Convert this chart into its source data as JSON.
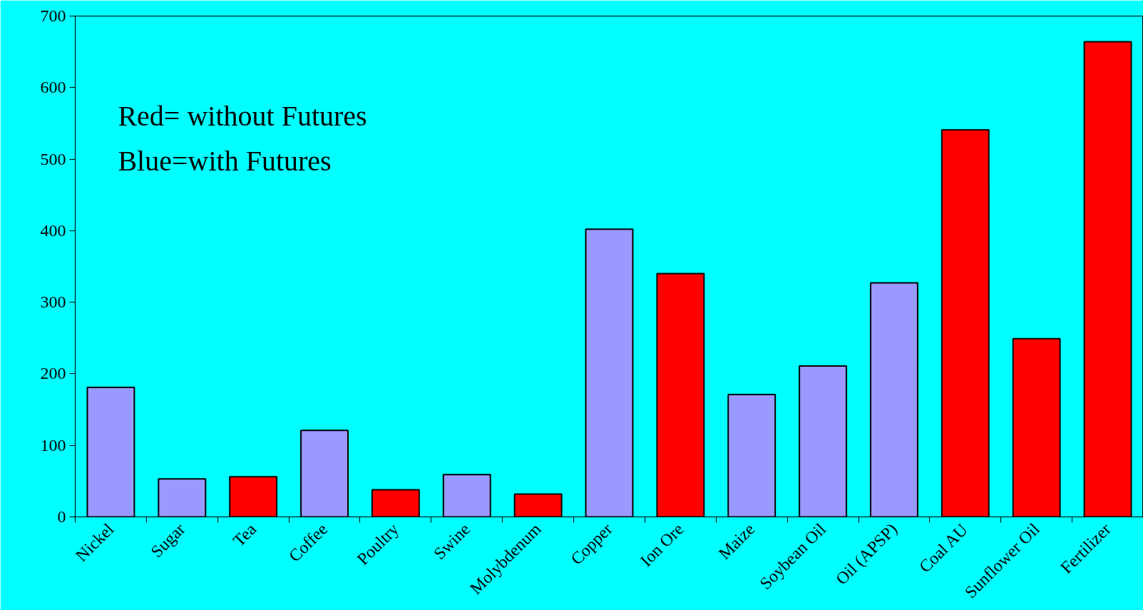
{
  "chart_data": {
    "type": "bar",
    "categories": [
      "Nickel",
      "Sugar",
      "Tea",
      "Coffee",
      "Poultry",
      "Swine",
      "Molybdenum",
      "Copper",
      "Ion Ore",
      "Maize",
      "Soybean Oil",
      "Oil (APSP)",
      "Coal AU",
      "Sunflower Oil",
      "Fertilizer"
    ],
    "values": [
      181,
      53,
      56,
      121,
      38,
      59,
      32,
      402,
      340,
      171,
      211,
      327,
      541,
      249,
      664
    ],
    "colors": [
      "#9999ff",
      "#9999ff",
      "#ff0000",
      "#9999ff",
      "#ff0000",
      "#9999ff",
      "#ff0000",
      "#9999ff",
      "#ff0000",
      "#9999ff",
      "#9999ff",
      "#9999ff",
      "#ff0000",
      "#ff0000",
      "#ff0000"
    ],
    "ylim": [
      0,
      700
    ],
    "yticks": [
      0,
      100,
      200,
      300,
      400,
      500,
      600,
      700
    ],
    "annotations": [
      "Red= without Futures",
      "Blue=with Futures"
    ],
    "grid": false
  }
}
